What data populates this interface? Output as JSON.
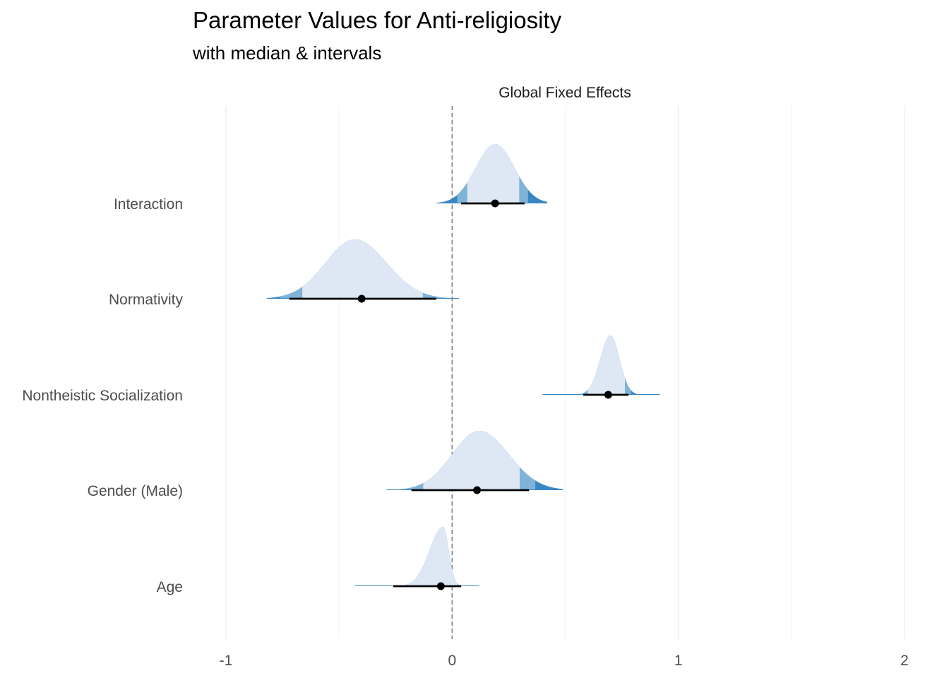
{
  "chart_data": {
    "type": "halfeye",
    "title": "Parameter Values for Anti-religiosity",
    "subtitle": "with median & intervals",
    "facet_label": "Global Fixed Effects",
    "xlabel": "",
    "ylabel": "",
    "xlim": [
      -1,
      2
    ],
    "x_ticks": [
      -1,
      0,
      1,
      2
    ],
    "x_tick_labels": [
      "-1",
      "0",
      "1",
      "2"
    ],
    "reference_line": 0,
    "grid": true,
    "legend": "none",
    "colors": {
      "density_fill": "#dde8f4",
      "outer_fill": "#7fb3d8",
      "tail_fill": "#3a86c2",
      "point": "#000000",
      "interval": "#000000",
      "reference_line": "#808080",
      "grid": "#ebebeb"
    },
    "parameters": [
      {
        "label": "Interaction",
        "median": 0.19,
        "mean": 0.19,
        "sd_left": 0.085,
        "sd_right": 0.085,
        "lower": 0.04,
        "upper": 0.32,
        "min": -0.07,
        "max": 0.42
      },
      {
        "label": "Normativity",
        "median": -0.4,
        "mean": -0.43,
        "sd_left": 0.13,
        "sd_right": 0.14,
        "lower": -0.72,
        "upper": -0.07,
        "min": -0.82,
        "max": 0.03
      },
      {
        "label": "Nontheistic Socialization",
        "median": 0.69,
        "mean": 0.7,
        "sd_left": 0.045,
        "sd_right": 0.04,
        "lower": 0.58,
        "upper": 0.78,
        "min": 0.4,
        "max": 0.92
      },
      {
        "label": "Gender (Male)",
        "median": 0.11,
        "mean": 0.12,
        "sd_left": 0.12,
        "sd_right": 0.13,
        "lower": -0.18,
        "upper": 0.34,
        "min": -0.29,
        "max": 0.49
      },
      {
        "label": "Age",
        "median": -0.05,
        "mean": -0.04,
        "sd_left": 0.06,
        "sd_right": 0.025,
        "lower": -0.26,
        "upper": 0.04,
        "min": -0.43,
        "max": 0.12
      }
    ]
  }
}
